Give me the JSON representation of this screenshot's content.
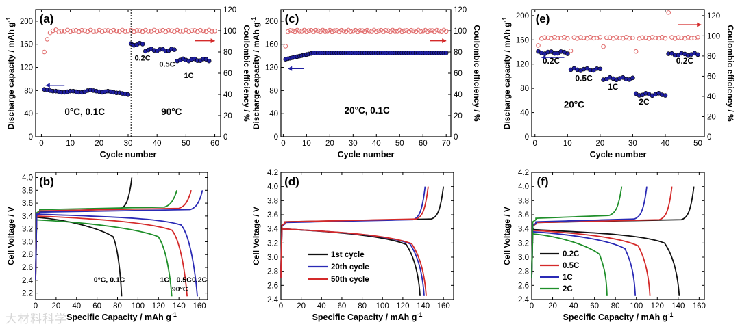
{
  "watermark": "大材料科学",
  "colors": {
    "black": "#111111",
    "red": "#d42a2a",
    "blue": "#2a2ab5",
    "green": "#1f8f2a",
    "ce": "#e06a6a",
    "cap": "#1f1fa0"
  },
  "chart_data": [
    {
      "id": "a",
      "type": "scatter",
      "panel_label": "(a)",
      "xlabel": "Cycle number",
      "ylabel": "Discharge capacity / mAh g-1",
      "y2label": "Coulombic efficiency / %",
      "xlim": [
        -2,
        62
      ],
      "ylim": [
        0,
        220
      ],
      "y2lim": [
        0,
        120
      ],
      "xticks": [
        0,
        10,
        20,
        30,
        40,
        50,
        60
      ],
      "yticks": [
        0,
        40,
        80,
        120,
        160,
        200
      ],
      "y2ticks": [
        0,
        20,
        40,
        60,
        80,
        100,
        120
      ],
      "capacity": [
        {
          "from": 1,
          "to": 30,
          "base": [
            82,
            81,
            80,
            79,
            79,
            78,
            77,
            77,
            78,
            79,
            79,
            78,
            77,
            77,
            78,
            80,
            81,
            80,
            79,
            78,
            77,
            78,
            79,
            78,
            77,
            76,
            76,
            75,
            74,
            73
          ]
        },
        {
          "from": 31,
          "to": 35,
          "value": 160
        },
        {
          "from": 36,
          "to": 46,
          "value": 150
        },
        {
          "from": 47,
          "to": 58,
          "value": 133
        }
      ],
      "ce": [
        {
          "from": 1,
          "to": 6,
          "values": [
            80,
            92,
            98,
            100,
            101,
            99
          ]
        },
        {
          "from": 7,
          "to": 60,
          "value": 100
        }
      ],
      "divider_x": 31,
      "annotations": [
        "0°C, 0.1C",
        "90°C",
        "0.2C",
        "0.5C",
        "1C"
      ]
    },
    {
      "id": "c",
      "type": "scatter",
      "panel_label": "(c)",
      "xlabel": "Cycle number",
      "ylabel": "Discharge capacity / mAh g-1",
      "y2label": "Coulombic efficiency / %",
      "xlim": [
        -1,
        72
      ],
      "ylim": [
        0,
        220
      ],
      "y2lim": [
        0,
        120
      ],
      "xticks": [
        0,
        10,
        20,
        30,
        40,
        50,
        60,
        70
      ],
      "yticks": [
        0,
        40,
        80,
        120,
        160,
        200
      ],
      "y2ticks": [
        0,
        20,
        40,
        60,
        80,
        100,
        120
      ],
      "capacity": [
        {
          "from": 1,
          "to": 70,
          "start": 134,
          "end": 145
        }
      ],
      "ce": [
        {
          "from": 1,
          "to": 1,
          "value": 85
        },
        {
          "from": 2,
          "to": 70,
          "value": 100
        }
      ],
      "annotations": [
        "20°C, 0.1C"
      ]
    },
    {
      "id": "e",
      "type": "scatter",
      "panel_label": "(e)",
      "xlabel": "Cycle number",
      "ylabel": "Discharge capacity / mAh g-1",
      "y2label": "Coulombic efficiency / %",
      "xlim": [
        -1,
        52
      ],
      "ylim": [
        0,
        210
      ],
      "y2lim": [
        0,
        126
      ],
      "xticks": [
        0,
        10,
        20,
        30,
        40,
        50
      ],
      "yticks": [
        0,
        40,
        80,
        120,
        160,
        200
      ],
      "y2ticks": [
        0,
        20,
        40,
        60,
        80,
        100,
        120
      ],
      "capacity": [
        {
          "from": 1,
          "to": 10,
          "value": 139
        },
        {
          "from": 11,
          "to": 20,
          "value": 111
        },
        {
          "from": 21,
          "to": 30,
          "value": 96
        },
        {
          "from": 31,
          "to": 40,
          "value": 70
        },
        {
          "from": 41,
          "to": 50,
          "value": 136
        }
      ],
      "ce": [
        {
          "from": 1,
          "to": 1,
          "value": 90
        },
        {
          "from": 2,
          "to": 10,
          "value": 98
        },
        {
          "from": 11,
          "to": 11,
          "value": 85
        },
        {
          "from": 12,
          "to": 20,
          "value": 98
        },
        {
          "from": 21,
          "to": 21,
          "value": 90
        },
        {
          "from": 22,
          "to": 30,
          "value": 98
        },
        {
          "from": 31,
          "to": 31,
          "value": 84
        },
        {
          "from": 32,
          "to": 40,
          "value": 98
        },
        {
          "from": 41,
          "to": 41,
          "value": 123
        },
        {
          "from": 42,
          "to": 50,
          "value": 98
        }
      ],
      "annotations": [
        "0.2C",
        "0.5C",
        "1C",
        "2C",
        "20°C",
        "0.2C"
      ]
    },
    {
      "id": "b",
      "type": "line",
      "panel_label": "(b)",
      "xlabel": "Specific Capacity / mAh g-1",
      "ylabel": "Cell Voltage / V",
      "xlim": [
        0,
        168
      ],
      "ylim": [
        2.1,
        4.08
      ],
      "xticks": [
        0,
        20,
        40,
        60,
        80,
        100,
        120,
        140,
        160
      ],
      "yticks": [
        2.2,
        2.4,
        2.6,
        2.8,
        3.0,
        3.2,
        3.4,
        3.6,
        3.8,
        4.0
      ],
      "series": [
        {
          "name": "0°C, 0.1C",
          "color": "black",
          "charge_end": 94,
          "charge_top": 4.0,
          "plateau": 3.47,
          "disch_cap": 84,
          "disch_start": 3.38,
          "disch_mid": 3.2
        },
        {
          "name": "1C",
          "color": "green",
          "charge_end": 138,
          "charge_top": 3.8,
          "plateau": 3.5,
          "disch_cap": 133,
          "disch_start": 3.34,
          "disch_mid": 3.2
        },
        {
          "name": "0.5C",
          "color": "red",
          "charge_end": 152,
          "charge_top": 3.8,
          "plateau": 3.48,
          "disch_cap": 148,
          "disch_start": 3.4,
          "disch_mid": 3.3
        },
        {
          "name": "0.2C",
          "color": "blue",
          "charge_end": 163,
          "charge_top": 3.8,
          "plateau": 3.46,
          "disch_cap": 158,
          "disch_start": 3.43,
          "disch_mid": 3.38
        }
      ],
      "annotations": [
        "0°C, 0.1C",
        "1C",
        "0.5C",
        "0.2C",
        "90°C"
      ]
    },
    {
      "id": "d",
      "type": "line",
      "panel_label": "(d)",
      "xlabel": "Specific Capacity / mAh g-1",
      "ylabel": "Cell Voltage / V",
      "xlim": [
        0,
        170
      ],
      "ylim": [
        2.4,
        4.2
      ],
      "xticks": [
        0,
        20,
        40,
        60,
        80,
        100,
        120,
        140,
        160
      ],
      "yticks": [
        2.4,
        2.6,
        2.8,
        3.0,
        3.2,
        3.4,
        3.6,
        3.8,
        4.0,
        4.2
      ],
      "series": [
        {
          "name": "1st cycle",
          "color": "black",
          "charge_end": 160,
          "charge_top": 4.0,
          "plateau": 3.5,
          "disch_cap": 137,
          "disch_start": 3.4,
          "disch_mid": 3.3
        },
        {
          "name": "20th cycle",
          "color": "blue",
          "charge_end": 142,
          "charge_top": 4.0,
          "plateau": 3.49,
          "disch_cap": 141,
          "disch_start": 3.4,
          "disch_mid": 3.31
        },
        {
          "name": "50th cycle",
          "color": "red",
          "charge_end": 145,
          "charge_top": 4.0,
          "plateau": 3.5,
          "disch_cap": 143,
          "disch_start": 3.4,
          "disch_mid": 3.31
        }
      ],
      "legend": [
        "1st cycle",
        "20th cycle",
        "50th cycle"
      ]
    },
    {
      "id": "f",
      "type": "line",
      "panel_label": "(f)",
      "xlabel": "Specific Capacity / mAh g-1",
      "ylabel": "Cell Voltage / V",
      "xlim": [
        0,
        165
      ],
      "ylim": [
        2.4,
        4.2
      ],
      "xticks": [
        0,
        20,
        40,
        60,
        80,
        100,
        120,
        140,
        160
      ],
      "yticks": [
        2.4,
        2.6,
        2.8,
        3.0,
        3.2,
        3.4,
        3.6,
        3.8,
        4.0,
        4.2
      ],
      "series": [
        {
          "name": "0.2C",
          "color": "black",
          "charge_end": 155,
          "charge_top": 4.0,
          "plateau": 3.49,
          "disch_cap": 141,
          "disch_start": 3.39,
          "disch_mid": 3.32
        },
        {
          "name": "0.5C",
          "color": "red",
          "charge_end": 134,
          "charge_top": 4.0,
          "plateau": 3.49,
          "disch_cap": 113,
          "disch_start": 3.38,
          "disch_mid": 3.28
        },
        {
          "name": "1C",
          "color": "blue",
          "charge_end": 110,
          "charge_top": 4.0,
          "plateau": 3.5,
          "disch_cap": 99,
          "disch_start": 3.36,
          "disch_mid": 3.24
        },
        {
          "name": "2C",
          "color": "green",
          "charge_end": 86,
          "charge_top": 4.0,
          "plateau": 3.55,
          "disch_cap": 72,
          "disch_start": 3.33,
          "disch_mid": 3.16
        }
      ],
      "legend": [
        "0.2C",
        "0.5C",
        "1C",
        "2C"
      ]
    }
  ]
}
